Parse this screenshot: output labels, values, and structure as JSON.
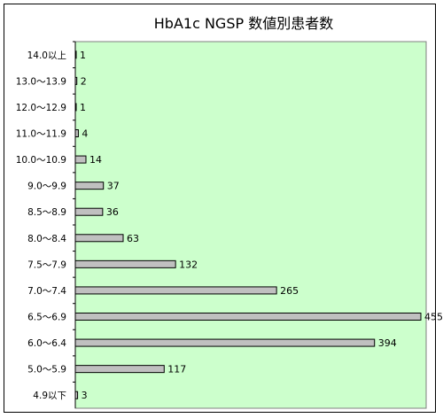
{
  "chart_data": {
    "type": "bar",
    "orientation": "horizontal",
    "title": "HbA1c NGSP 数値別患者数",
    "xlabel": "",
    "ylabel": "",
    "categories": [
      "14.0以上",
      "13.0～13.9",
      "12.0～12.9",
      "11.0～11.9",
      "10.0～10.9",
      "9.0～9.9",
      "8.5～8.9",
      "8.0～8.4",
      "7.5～7.9",
      "7.0～7.4",
      "6.5～6.9",
      "6.0～6.4",
      "5.0～5.9",
      "4.9以下"
    ],
    "values": [
      1,
      2,
      1,
      4,
      14,
      37,
      36,
      63,
      132,
      265,
      455,
      394,
      117,
      3
    ],
    "data_labels": [
      "1",
      "2",
      "1",
      "4",
      "14",
      "37",
      "36",
      "63",
      "132",
      "265",
      "455",
      "394",
      "117",
      "3"
    ],
    "xlim": [
      0,
      462
    ],
    "grid": false,
    "legend": "none",
    "colors": {
      "plot_background": "#ccffcc",
      "bar_fill": "#c0c0c0",
      "bar_stroke": "#000000",
      "frame": "#000000"
    }
  }
}
